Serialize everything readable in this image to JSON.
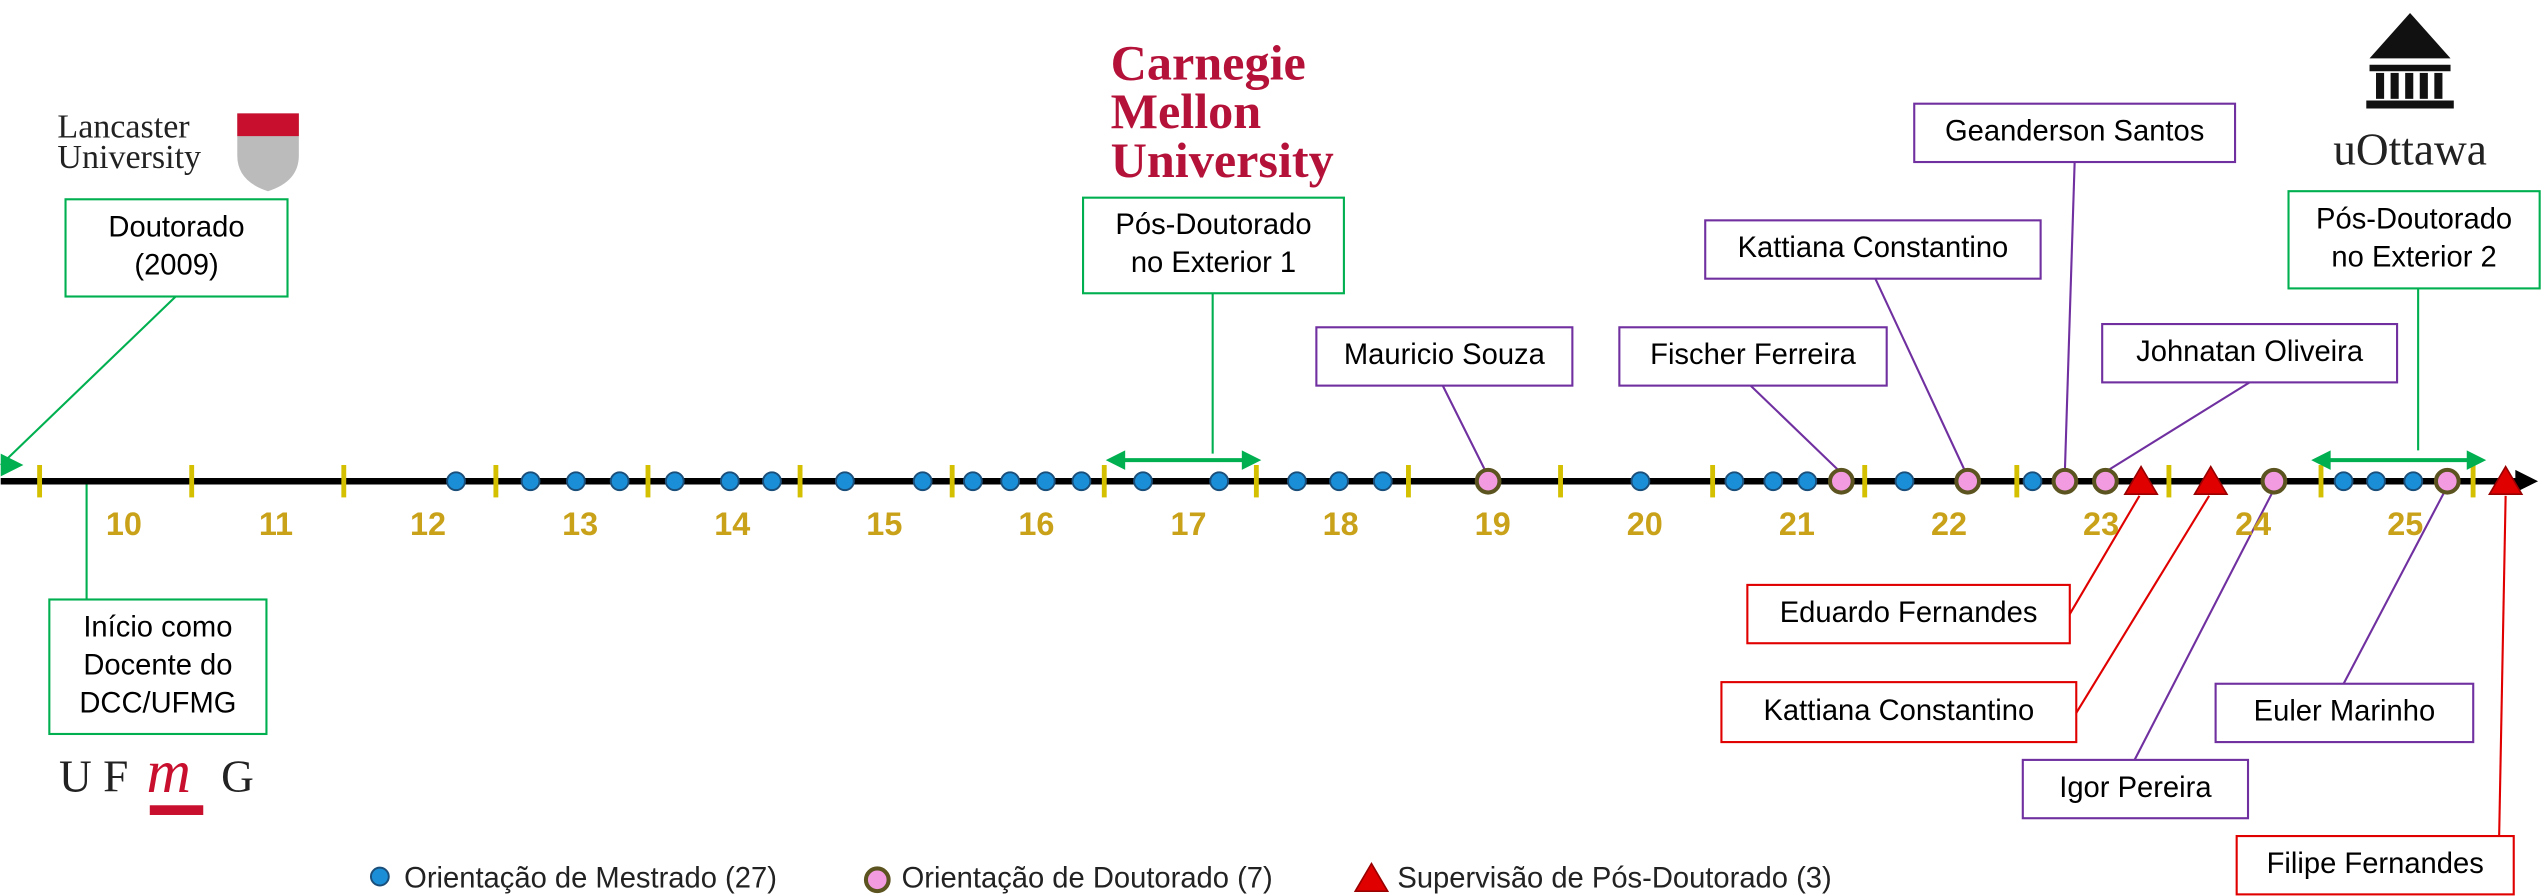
{
  "logos": {
    "lancaster": [
      "Lancaster",
      "University"
    ],
    "cmu": [
      "Carnegie",
      "Mellon",
      "University"
    ],
    "ottawa": "uOttawa",
    "ufmg": [
      "U F",
      "m",
      "G"
    ]
  },
  "years": [
    "10",
    "11",
    "12",
    "13",
    "14",
    "15",
    "16",
    "17",
    "18",
    "19",
    "20",
    "21",
    "22",
    "23",
    "24",
    "25"
  ],
  "green_boxes": [
    {
      "lines": [
        "Doutorado",
        "(2009)"
      ]
    },
    {
      "lines": [
        "Início como",
        "Docente do",
        "DCC/UFMG"
      ]
    },
    {
      "lines": [
        "Pós-Doutorado",
        "no Exterior 1"
      ]
    },
    {
      "lines": [
        "Pós-Doutorado",
        "no Exterior 2"
      ]
    }
  ],
  "phd_boxes": [
    "Mauricio Souza",
    "Fischer Ferreira",
    "Kattiana Constantino",
    "Geanderson Santos",
    "Johnatan Oliveira",
    "Igor Pereira",
    "Euler Marinho"
  ],
  "postdoc_boxes": [
    "Eduardo Fernandes",
    "Kattiana Constantino",
    "Filipe Fernandes"
  ],
  "legend": [
    "Orientação de Mestrado (27)",
    "Orientação de Doutorado (7)",
    "Supervisão de Pós-Doutorado (3)"
  ]
}
